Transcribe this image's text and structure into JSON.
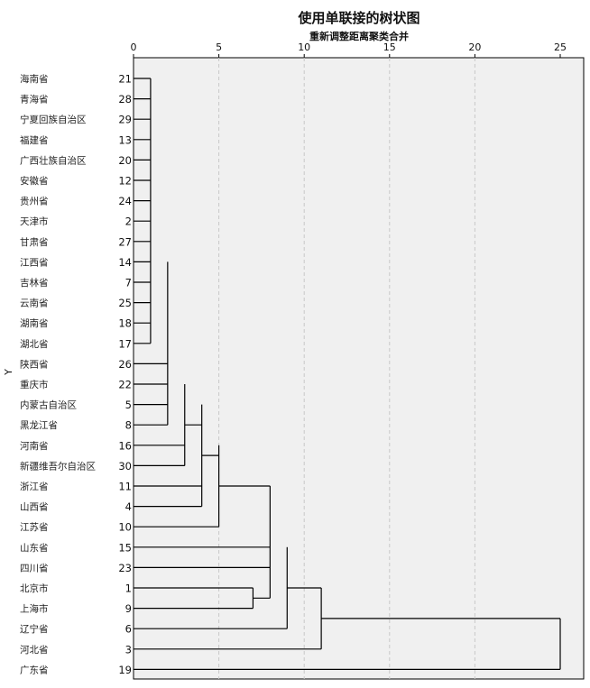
{
  "chart_data": {
    "type": "dendrogram",
    "title": "使用单联接的树状图",
    "xlabel": "重新调整距离聚类合并",
    "ylabel": "Y",
    "xlim": [
      0,
      25
    ],
    "xticks": [
      "0",
      "5",
      "10",
      "15",
      "20",
      "25"
    ],
    "grid": true,
    "leaves": [
      {
        "label": "海南省",
        "id": "21"
      },
      {
        "label": "青海省",
        "id": "28"
      },
      {
        "label": "宁夏回族自治区",
        "id": "29"
      },
      {
        "label": "福建省",
        "id": "13"
      },
      {
        "label": "广西壮族自治区",
        "id": "20"
      },
      {
        "label": "安徽省",
        "id": "12"
      },
      {
        "label": "贵州省",
        "id": "24"
      },
      {
        "label": "天津市",
        "id": "2"
      },
      {
        "label": "甘肃省",
        "id": "27"
      },
      {
        "label": "江西省",
        "id": "14"
      },
      {
        "label": "吉林省",
        "id": "7"
      },
      {
        "label": "云南省",
        "id": "25"
      },
      {
        "label": "湖南省",
        "id": "18"
      },
      {
        "label": "湖北省",
        "id": "17"
      },
      {
        "label": "陕西省",
        "id": "26"
      },
      {
        "label": "重庆市",
        "id": "22"
      },
      {
        "label": "内蒙古自治区",
        "id": "5"
      },
      {
        "label": "黑龙江省",
        "id": "8"
      },
      {
        "label": "河南省",
        "id": "16"
      },
      {
        "label": "新疆维吾尔自治区",
        "id": "30"
      },
      {
        "label": "浙江省",
        "id": "11"
      },
      {
        "label": "山西省",
        "id": "4"
      },
      {
        "label": "江苏省",
        "id": "10"
      },
      {
        "label": "山东省",
        "id": "15"
      },
      {
        "label": "四川省",
        "id": "23"
      },
      {
        "label": "北京市",
        "id": "1"
      },
      {
        "label": "上海市",
        "id": "9"
      },
      {
        "label": "辽宁省",
        "id": "6"
      },
      {
        "label": "河北省",
        "id": "3"
      },
      {
        "label": "广东省",
        "id": "19"
      }
    ],
    "merges": [
      {
        "from_row": 0,
        "to_row": 13,
        "height": 1.0
      },
      {
        "from_row": 9,
        "to_row": 17,
        "height": 2.0
      },
      {
        "from_row": 15,
        "to_row": 19,
        "height": 3.0
      },
      {
        "from_row": 16,
        "to_row": 21,
        "height": 4.0
      },
      {
        "from_row": 18,
        "to_row": 22,
        "height": 5.0
      },
      {
        "from_row": 25,
        "to_row": 26,
        "height": 7.0
      },
      {
        "from_row": 20,
        "to_row": 25.5,
        "height": 8.0
      },
      {
        "from_row": 23,
        "to_row": 27,
        "height": 9.0
      },
      {
        "from_row": 25,
        "to_row": 28,
        "height": 11.0
      },
      {
        "from_row": 26.5,
        "to_row": 29,
        "height": 25.0
      }
    ]
  }
}
